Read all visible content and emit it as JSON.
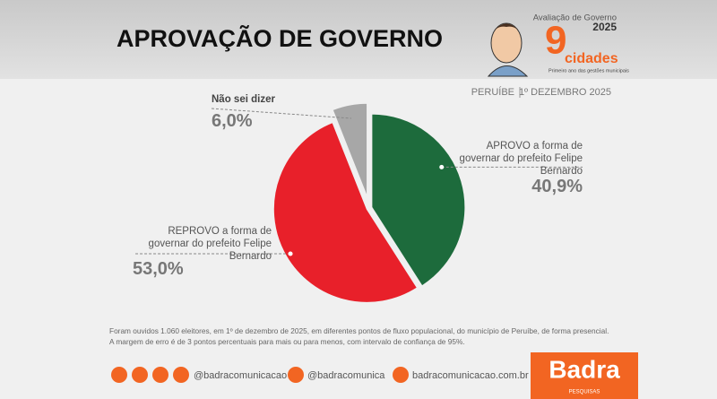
{
  "chart_data": {
    "type": "pie",
    "title": "APROVAÇÃO DE GOVERNO",
    "location": "PERUÍBE",
    "date": "1º DEZEMBRO 2025",
    "categories": [
      "APROVO a forma de governar do prefeito Felipe Bernardo",
      "REPROVO a forma de governar do prefeito Felipe Bernardo",
      "Não sei dizer"
    ],
    "values": [
      40.9,
      53.0,
      6.0
    ],
    "value_labels": [
      "40,9%",
      "53,0%",
      "6,0%"
    ],
    "colors": [
      "#1d6b3c",
      "#e8202a",
      "#a7a7a7"
    ]
  },
  "header": {
    "kicker": "Avaliação de Governo",
    "year": "2025",
    "number": "9",
    "word": "cidades",
    "tagline": "Primeiro ano das gestões municipais"
  },
  "footnote": [
    "Foram ouvidos 1.060 eleitores, em 1º de dezembro de 2025, em diferentes pontos de fluxo populacional, do município de Peruíbe, de forma presencial.",
    "A margem de erro é de 3 pontos percentuais para mais ou para menos, com intervalo de confiança de 95%."
  ],
  "footer": {
    "social": "@badracomunicacao",
    "x_handle": "@badracomunica",
    "site": "badracomunicacao.com.br",
    "brand": "Badra",
    "brand_sub": "PESQUISAS"
  }
}
